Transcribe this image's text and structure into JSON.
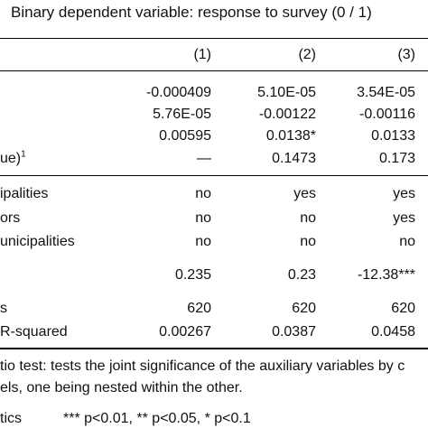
{
  "table": {
    "title": "Binary dependent variable: response to survey (0 / 1)",
    "columns": [
      "(1)",
      "(2)",
      "(3)"
    ],
    "rows": [
      {
        "label": "",
        "values": [
          "-0.000409",
          "5.10E-05",
          "3.54E-05"
        ]
      },
      {
        "label": "",
        "values": [
          "5.76E-05",
          "-0.00122",
          "-0.00116"
        ]
      },
      {
        "label": "",
        "values": [
          "0.00595",
          "0.0138*",
          "0.0133"
        ]
      },
      {
        "label": "ue)",
        "sup": "1",
        "values": [
          "—",
          "0.1473",
          "0.173"
        ]
      },
      {
        "label": "ipalities",
        "values": [
          "no",
          "yes",
          "yes"
        ]
      },
      {
        "label": "ors",
        "values": [
          "no",
          "no",
          "yes"
        ]
      },
      {
        "label": "unicipalities",
        "values": [
          "no",
          "no",
          "no"
        ]
      },
      {
        "label": "",
        "values": [
          "0.235",
          "0.23",
          "-12.38***"
        ]
      },
      {
        "label": "s",
        "values": [
          "620",
          "620",
          "620"
        ]
      },
      {
        "label": "R-squared",
        "values": [
          "0.00267",
          "0.0387",
          "0.0458"
        ]
      }
    ],
    "footnote_line1": "tio test: tests the joint significance of the auxiliary variables by c",
    "footnote_line2": "els, one being nested within the other.",
    "stats_label": "tics",
    "significance_note": "*** p<0.01, ** p<0.05, * p<0.1"
  }
}
